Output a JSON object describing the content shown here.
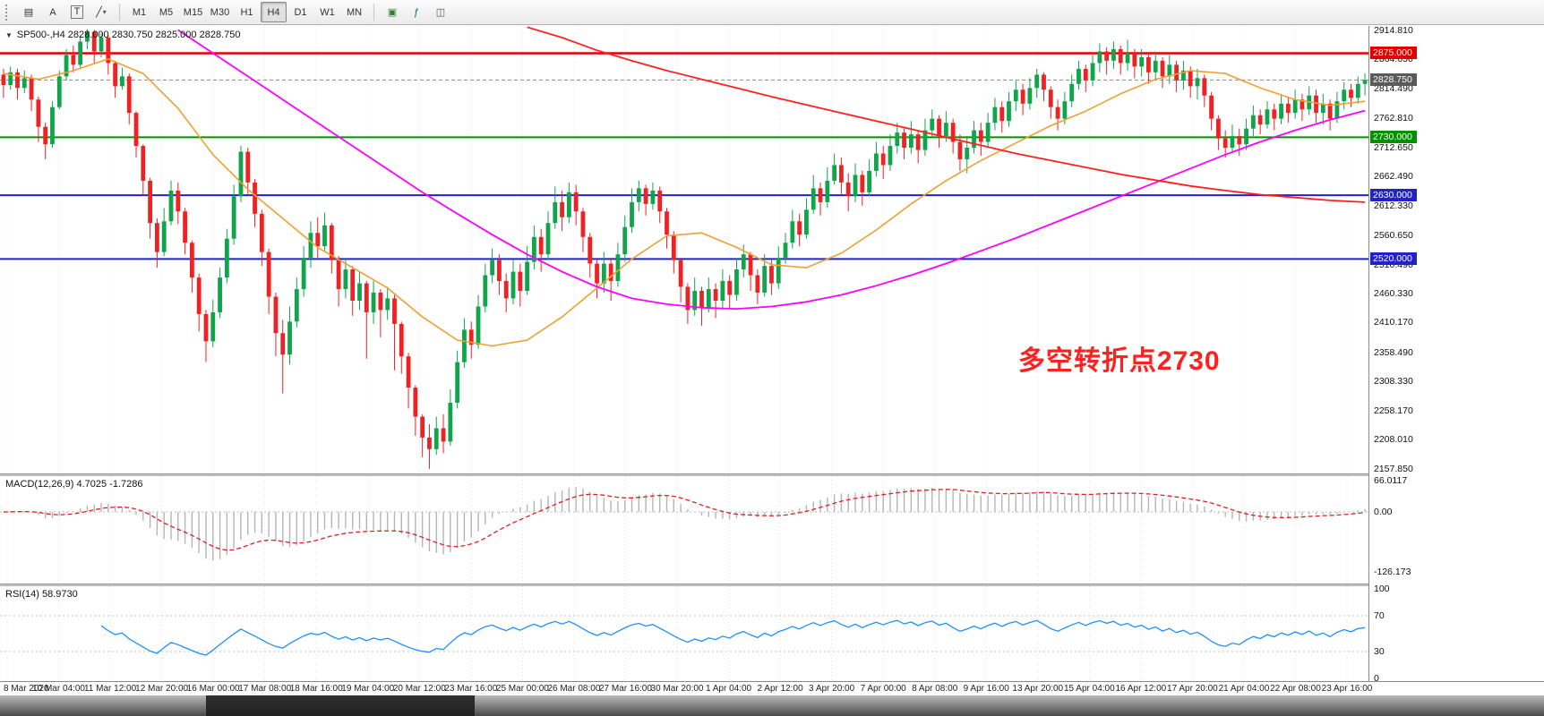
{
  "toolbar": {
    "icon_buttons_left": [
      {
        "id": "chart-window-icon",
        "glyph": "▤"
      },
      {
        "id": "text-label-icon",
        "glyph": "A"
      },
      {
        "id": "text-box-icon",
        "glyph": "T"
      },
      {
        "id": "draw-line-icon",
        "glyph": "╱"
      },
      {
        "id": "dropdown-caret-icon",
        "glyph": "▾"
      }
    ],
    "timeframes": [
      "M1",
      "M5",
      "M15",
      "M30",
      "H1",
      "H4",
      "D1",
      "W1",
      "MN"
    ],
    "active_timeframe": "H4",
    "icon_buttons_right": [
      {
        "id": "new-order-icon",
        "glyph": "▣"
      },
      {
        "id": "indicators-icon",
        "glyph": "ƒ"
      },
      {
        "id": "templates-icon",
        "glyph": "◫"
      }
    ]
  },
  "chart_header": {
    "collapse_glyph": "▼",
    "info_line": "SP500-,H4 2828.000 2830.750 2825.000 2828.750"
  },
  "chart_data": {
    "type": "candlestick",
    "symbol": "SP500-",
    "period": "H4",
    "ohlc_display": {
      "open": "2828.000",
      "high": "2830.750",
      "low": "2825.000",
      "close": "2828.750"
    },
    "colors": {
      "up": "#10A54A",
      "down": "#EE2222",
      "grid": "#e3e3e3",
      "macd_hist": "#b5b5b5",
      "macd_signal": "#e02020",
      "rsi_line": "#1E90FF"
    },
    "price_axis": {
      "max": 2922,
      "min": 2150,
      "ticks": [
        "2914.810",
        "2864.650",
        "2814.490",
        "2762.810",
        "2712.650",
        "2662.490",
        "2612.330",
        "2560.650",
        "2510.490",
        "2460.330",
        "2410.170",
        "2358.490",
        "2308.330",
        "2258.170",
        "2208.010",
        "2157.850"
      ]
    },
    "hlines": [
      {
        "label": "2875.000",
        "price": 2875.0,
        "color": "#e00000",
        "width": 2.5
      },
      {
        "label": "2730.000",
        "price": 2730.0,
        "color": "#009000",
        "width": 2
      },
      {
        "label": "2630.000",
        "price": 2630.0,
        "color": "#2222cc",
        "width": 2
      },
      {
        "label": "2520.000",
        "price": 2520.0,
        "color": "#2222cc",
        "width": 2
      }
    ],
    "current_price": {
      "label": "2828.750",
      "price": 2828.75,
      "badge_color": "#5a5a5a"
    },
    "annotation": {
      "text": "多空转折点2730",
      "color": "#ff2020",
      "x_frac": 0.744,
      "y_price": 2355
    },
    "first_open": 2838,
    "bars": [
      [
        2820,
        2848,
        2798
      ],
      [
        2842,
        2852,
        2812
      ],
      [
        2815,
        2848,
        2795
      ],
      [
        2832,
        2845,
        2806
      ],
      [
        2795,
        2838,
        2775
      ],
      [
        2748,
        2800,
        2722
      ],
      [
        2718,
        2755,
        2692
      ],
      [
        2782,
        2792,
        2712
      ],
      [
        2835,
        2845,
        2778
      ],
      [
        2872,
        2882,
        2828
      ],
      [
        2855,
        2888,
        2842
      ],
      [
        2895,
        2905,
        2848
      ],
      [
        2912,
        2916,
        2882
      ],
      [
        2878,
        2915,
        2858
      ],
      [
        2902,
        2910,
        2868
      ],
      [
        2858,
        2906,
        2838
      ],
      [
        2818,
        2862,
        2798
      ],
      [
        2835,
        2850,
        2812
      ],
      [
        2772,
        2840,
        2752
      ],
      [
        2715,
        2775,
        2695
      ],
      [
        2655,
        2718,
        2630
      ],
      [
        2582,
        2660,
        2555
      ],
      [
        2532,
        2590,
        2505
      ],
      [
        2585,
        2608,
        2525
      ],
      [
        2638,
        2655,
        2578
      ],
      [
        2602,
        2652,
        2580
      ],
      [
        2548,
        2608,
        2528
      ],
      [
        2488,
        2552,
        2462
      ],
      [
        2425,
        2495,
        2395
      ],
      [
        2378,
        2432,
        2342
      ],
      [
        2428,
        2450,
        2368
      ],
      [
        2488,
        2505,
        2418
      ],
      [
        2555,
        2572,
        2478
      ],
      [
        2628,
        2648,
        2545
      ],
      [
        2705,
        2715,
        2618
      ],
      [
        2652,
        2712,
        2632
      ],
      [
        2598,
        2658,
        2575
      ],
      [
        2532,
        2605,
        2508
      ],
      [
        2455,
        2538,
        2425
      ],
      [
        2392,
        2462,
        2352
      ],
      [
        2355,
        2415,
        2288
      ],
      [
        2412,
        2438,
        2338
      ],
      [
        2468,
        2488,
        2402
      ],
      [
        2522,
        2542,
        2455
      ],
      [
        2565,
        2585,
        2505
      ],
      [
        2542,
        2592,
        2522
      ],
      [
        2578,
        2600,
        2535
      ],
      [
        2518,
        2582,
        2495
      ],
      [
        2468,
        2525,
        2438
      ],
      [
        2502,
        2522,
        2452
      ],
      [
        2448,
        2508,
        2422
      ],
      [
        2478,
        2498,
        2432
      ],
      [
        2428,
        2482,
        2348
      ],
      [
        2462,
        2482,
        2408
      ],
      [
        2432,
        2468,
        2385
      ],
      [
        2452,
        2472,
        2415
      ],
      [
        2408,
        2458,
        2328
      ],
      [
        2352,
        2412,
        2322
      ],
      [
        2298,
        2358,
        2262
      ],
      [
        2248,
        2302,
        2215
      ],
      [
        2212,
        2252,
        2178
      ],
      [
        2192,
        2235,
        2158
      ],
      [
        2228,
        2248,
        2182
      ],
      [
        2205,
        2252,
        2185
      ],
      [
        2272,
        2295,
        2198
      ],
      [
        2342,
        2362,
        2262
      ],
      [
        2398,
        2418,
        2332
      ],
      [
        2372,
        2412,
        2348
      ],
      [
        2438,
        2458,
        2365
      ],
      [
        2492,
        2512,
        2428
      ],
      [
        2518,
        2538,
        2478
      ],
      [
        2482,
        2528,
        2458
      ],
      [
        2452,
        2495,
        2428
      ],
      [
        2498,
        2518,
        2442
      ],
      [
        2465,
        2512,
        2438
      ],
      [
        2515,
        2542,
        2458
      ],
      [
        2558,
        2578,
        2502
      ],
      [
        2528,
        2572,
        2498
      ],
      [
        2582,
        2602,
        2518
      ],
      [
        2618,
        2645,
        2572
      ],
      [
        2592,
        2638,
        2568
      ],
      [
        2635,
        2652,
        2582
      ],
      [
        2602,
        2648,
        2578
      ],
      [
        2558,
        2608,
        2532
      ],
      [
        2512,
        2565,
        2488
      ],
      [
        2478,
        2518,
        2452
      ],
      [
        2512,
        2532,
        2462
      ],
      [
        2482,
        2522,
        2448
      ],
      [
        2528,
        2548,
        2472
      ],
      [
        2575,
        2595,
        2515
      ],
      [
        2618,
        2642,
        2565
      ],
      [
        2642,
        2655,
        2602
      ],
      [
        2615,
        2648,
        2595
      ],
      [
        2638,
        2652,
        2605
      ],
      [
        2602,
        2645,
        2582
      ],
      [
        2562,
        2608,
        2538
      ],
      [
        2518,
        2568,
        2495
      ],
      [
        2472,
        2522,
        2445
      ],
      [
        2432,
        2478,
        2408
      ],
      [
        2465,
        2488,
        2422
      ],
      [
        2435,
        2472,
        2405
      ],
      [
        2468,
        2488,
        2428
      ],
      [
        2448,
        2478,
        2418
      ],
      [
        2482,
        2502,
        2432
      ],
      [
        2458,
        2492,
        2435
      ],
      [
        2502,
        2522,
        2448
      ],
      [
        2528,
        2545,
        2488
      ],
      [
        2492,
        2532,
        2465
      ],
      [
        2462,
        2502,
        2442
      ],
      [
        2508,
        2528,
        2455
      ],
      [
        2478,
        2518,
        2458
      ],
      [
        2522,
        2542,
        2468
      ],
      [
        2548,
        2565,
        2512
      ],
      [
        2585,
        2605,
        2538
      ],
      [
        2562,
        2598,
        2542
      ],
      [
        2605,
        2625,
        2555
      ],
      [
        2642,
        2665,
        2598
      ],
      [
        2618,
        2652,
        2595
      ],
      [
        2655,
        2678,
        2608
      ],
      [
        2682,
        2702,
        2648
      ],
      [
        2652,
        2695,
        2632
      ],
      [
        2628,
        2668,
        2602
      ],
      [
        2665,
        2685,
        2618
      ],
      [
        2635,
        2672,
        2612
      ],
      [
        2672,
        2692,
        2628
      ],
      [
        2702,
        2722,
        2662
      ],
      [
        2682,
        2715,
        2658
      ],
      [
        2715,
        2735,
        2672
      ],
      [
        2738,
        2755,
        2702
      ],
      [
        2712,
        2745,
        2692
      ],
      [
        2735,
        2758,
        2702
      ],
      [
        2708,
        2742,
        2685
      ],
      [
        2742,
        2762,
        2698
      ],
      [
        2762,
        2778,
        2728
      ],
      [
        2732,
        2768,
        2712
      ],
      [
        2755,
        2775,
        2722
      ],
      [
        2722,
        2762,
        2702
      ],
      [
        2692,
        2735,
        2672
      ],
      [
        2712,
        2732,
        2668
      ],
      [
        2742,
        2758,
        2702
      ],
      [
        2722,
        2755,
        2698
      ],
      [
        2755,
        2772,
        2712
      ],
      [
        2782,
        2798,
        2742
      ],
      [
        2758,
        2792,
        2738
      ],
      [
        2792,
        2808,
        2748
      ],
      [
        2812,
        2828,
        2775
      ],
      [
        2788,
        2822,
        2768
      ],
      [
        2815,
        2832,
        2778
      ],
      [
        2838,
        2848,
        2798
      ],
      [
        2812,
        2842,
        2792
      ],
      [
        2782,
        2818,
        2762
      ],
      [
        2762,
        2795,
        2742
      ],
      [
        2792,
        2808,
        2752
      ],
      [
        2822,
        2838,
        2782
      ],
      [
        2848,
        2862,
        2812
      ],
      [
        2828,
        2855,
        2808
      ],
      [
        2858,
        2872,
        2818
      ],
      [
        2878,
        2892,
        2842
      ],
      [
        2862,
        2885,
        2838
      ],
      [
        2882,
        2895,
        2848
      ],
      [
        2858,
        2888,
        2838
      ],
      [
        2875,
        2898,
        2845
      ],
      [
        2852,
        2882,
        2832
      ],
      [
        2868,
        2882,
        2835
      ],
      [
        2842,
        2875,
        2822
      ],
      [
        2862,
        2878,
        2828
      ],
      [
        2835,
        2868,
        2815
      ],
      [
        2855,
        2872,
        2822
      ],
      [
        2828,
        2862,
        2808
      ],
      [
        2845,
        2862,
        2812
      ],
      [
        2818,
        2852,
        2798
      ],
      [
        2832,
        2848,
        2795
      ],
      [
        2802,
        2838,
        2782
      ],
      [
        2762,
        2808,
        2742
      ],
      [
        2728,
        2768,
        2708
      ],
      [
        2712,
        2742,
        2695
      ],
      [
        2732,
        2752,
        2702
      ],
      [
        2718,
        2745,
        2698
      ],
      [
        2745,
        2762,
        2708
      ],
      [
        2768,
        2785,
        2732
      ],
      [
        2752,
        2778,
        2735
      ],
      [
        2778,
        2792,
        2745
      ],
      [
        2762,
        2788,
        2742
      ],
      [
        2788,
        2802,
        2752
      ],
      [
        2772,
        2798,
        2755
      ],
      [
        2795,
        2812,
        2762
      ],
      [
        2778,
        2805,
        2758
      ],
      [
        2802,
        2818,
        2768
      ],
      [
        2772,
        2812,
        2755
      ],
      [
        2788,
        2805,
        2752
      ],
      [
        2762,
        2795,
        2742
      ],
      [
        2792,
        2808,
        2755
      ],
      [
        2812,
        2825,
        2778
      ],
      [
        2798,
        2822,
        2782
      ],
      [
        2822,
        2835,
        2788
      ],
      [
        2828.75,
        2840,
        2802
      ]
    ],
    "overlays": [
      {
        "name": "ma-fast-orange",
        "color": "#F0A030",
        "width": 1.6,
        "start": 0,
        "step": 5,
        "values": [
          2840,
          2830,
          2845,
          2865,
          2840,
          2780,
          2700,
          2640,
          2590,
          2540,
          2505,
          2470,
          2420,
          2380,
          2370,
          2380,
          2420,
          2470,
          2520,
          2560,
          2565,
          2540,
          2510,
          2505,
          2530,
          2570,
          2615,
          2655,
          2690,
          2720,
          2750,
          2775,
          2805,
          2830,
          2845,
          2840,
          2815,
          2795,
          2785,
          2792
        ]
      },
      {
        "name": "ma-mid-magenta",
        "color": "#FF00FF",
        "width": 1.8,
        "start": 25,
        "step": 5,
        "values": [
          2915,
          2875,
          2835,
          2795,
          2755,
          2715,
          2675,
          2635,
          2598,
          2562,
          2528,
          2498,
          2472,
          2452,
          2442,
          2436,
          2434,
          2438,
          2446,
          2458,
          2474,
          2492,
          2512,
          2534,
          2556,
          2580,
          2604,
          2628,
          2652,
          2676,
          2700,
          2722,
          2742,
          2760,
          2776
        ]
      },
      {
        "name": "ma-slow-red",
        "color": "#FF2020",
        "width": 1.8,
        "start": 75,
        "step": 5,
        "values": [
          2920,
          2902,
          2880,
          2862,
          2845,
          2830,
          2815,
          2800,
          2786,
          2772,
          2758,
          2744,
          2730,
          2716,
          2702,
          2690,
          2678,
          2666,
          2656,
          2646,
          2638,
          2631,
          2626,
          2621,
          2618
        ]
      }
    ],
    "x_axis": {
      "labels": [
        "8 Mar 2020",
        "10 Mar 04:00",
        "11 Mar 12:00",
        "12 Mar 20:00",
        "16 Mar 00:00",
        "17 Mar 08:00",
        "18 Mar 16:00",
        "19 Mar 04:00",
        "20 Mar 12:00",
        "23 Mar 16:00",
        "25 Mar 00:00",
        "26 Mar 08:00",
        "27 Mar 16:00",
        "30 Mar 20:00",
        "1 Apr 04:00",
        "2 Apr 12:00",
        "3 Apr 20:00",
        "7 Apr 00:00",
        "8 Apr 08:00",
        "9 Apr 16:00",
        "13 Apr 20:00",
        "15 Apr 04:00",
        "16 Apr 12:00",
        "17 Apr 20:00",
        "21 Apr 04:00",
        "22 Apr 08:00",
        "23 Apr 16:00"
      ]
    },
    "indicators": [
      {
        "name": "MACD",
        "label": "MACD(12,26,9) 4.7025 -1.7286",
        "params": {
          "fast": 12,
          "slow": 26,
          "signal": 9
        },
        "range": [
          -150,
          75
        ],
        "axis": [
          {
            "label": "66.0117",
            "value": 66.0117
          },
          {
            "label": "0.00",
            "value": 0
          },
          {
            "label": "-126.173",
            "value": -126.173
          }
        ]
      },
      {
        "name": "RSI",
        "label": "RSI(14) 58.9730",
        "period": 14,
        "levels": [
          70,
          30
        ],
        "range": [
          0,
          100
        ],
        "axis": [
          {
            "label": "100",
            "value": 100
          },
          {
            "label": "70",
            "value": 70
          },
          {
            "label": "30",
            "value": 30
          },
          {
            "label": "0",
            "value": 0
          }
        ]
      }
    ]
  }
}
